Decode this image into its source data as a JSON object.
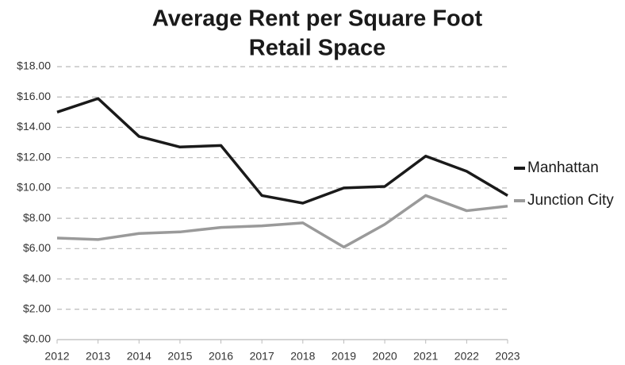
{
  "chart_data": {
    "type": "line",
    "title": [
      "Average Rent per Square Foot",
      "Retail Space"
    ],
    "x": [
      2012,
      2013,
      2014,
      2015,
      2016,
      2017,
      2018,
      2019,
      2020,
      2021,
      2022,
      2023
    ],
    "xlim": [
      2012,
      2023
    ],
    "xticks": [
      2012,
      2013,
      2014,
      2015,
      2016,
      2017,
      2018,
      2019,
      2020,
      2021,
      2022,
      2023
    ],
    "ylim": [
      0,
      18
    ],
    "yticks": [
      {
        "value": 0,
        "label": "$0.00"
      },
      {
        "value": 2,
        "label": "$2.00"
      },
      {
        "value": 4,
        "label": "$4.00"
      },
      {
        "value": 6,
        "label": "$6.00"
      },
      {
        "value": 8,
        "label": "$8.00"
      },
      {
        "value": 10,
        "label": "$10.00"
      },
      {
        "value": 12,
        "label": "$12.00"
      },
      {
        "value": 14,
        "label": "$14.00"
      },
      {
        "value": 16,
        "label": "$16.00"
      },
      {
        "value": 18,
        "label": "$18.00"
      }
    ],
    "grid": true,
    "legend": "right",
    "series": [
      {
        "name": "Manhattan",
        "color": "#1a1a1a",
        "values": [
          15.0,
          15.9,
          13.4,
          12.7,
          12.8,
          9.5,
          9.0,
          10.0,
          10.1,
          12.1,
          11.1,
          9.5
        ]
      },
      {
        "name": "Junction City",
        "color": "#9a9a9a",
        "values": [
          6.7,
          6.6,
          7.0,
          7.1,
          7.4,
          7.5,
          7.7,
          6.1,
          7.6,
          9.5,
          8.5,
          8.8
        ]
      }
    ]
  }
}
